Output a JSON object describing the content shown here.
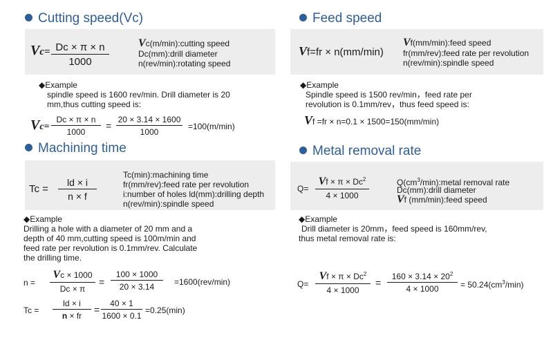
{
  "cutting": {
    "title": "Cutting speed(Vc)",
    "formula": {
      "lhs_v": "V",
      "lhs_sub": "c=",
      "num": "Dc × π × n",
      "den": "1000"
    },
    "legend": [
      {
        "v": "V",
        "text": "c(m/min):cutting speed"
      },
      {
        "text": "Dc(mm):drill diameter"
      },
      {
        "text": "n(rev/min):rotating speed"
      }
    ],
    "example_head": "◆Example",
    "example_lines": [
      "spindle speed is 1600 rev/min. Drill diameter is 20",
      "mm,thus cutting speed is:"
    ],
    "calc": {
      "v": "V",
      "sub": "c=",
      "num1": "Dc × π × n",
      "den1": "1000",
      "eq": "=",
      "num2": "20 × 3.14 × 1600",
      "den2": "1000",
      "result": "=100(m/min)"
    }
  },
  "feed": {
    "title": "Feed speed",
    "formula": {
      "v": "V",
      "text": "f=fr × n(mm/min)"
    },
    "legend": [
      {
        "v": "V",
        "text": "f(mm/min):feed speed"
      },
      {
        "text": "fr(mm/rev):feed rate per revolution"
      },
      {
        "text": "n(rev/min):spindle speed"
      }
    ],
    "example_head": "◆Example",
    "example_lines": [
      "Spindle speed is 1500 rev/min，feed rate per",
      "revolution is 0.1mm/rev，thus feed speed is:"
    ],
    "calc": {
      "v": "V",
      "text": "f =fr × n=0.1 × 1500=150(mm/min)"
    }
  },
  "machining": {
    "title": "Machining time",
    "formula": {
      "lhs": "Tc  =",
      "num": "ld × i",
      "den": "n × f"
    },
    "legend": [
      "Tc(min):machining time",
      "fr(mm/rev):feed rate per revolution",
      "i:number of holes ld(mm):drilling depth",
      "n(rev/min):spindle speed"
    ],
    "example_head": "◆Example",
    "example_lines": [
      "Drilling a hole with a diameter of 20 mm and a",
      "depth of 40 mm,cutting speed is 100m/min and",
      "feed rate per revolution is 0.1mm/rev. Calculate",
      "the drilling time."
    ],
    "calc_n": {
      "lhs": "n  =",
      "num1_v": "V",
      "num1_rest": "c × 1000",
      "den1": "Dc × π",
      "eq": "=",
      "num2": "100 × 1000",
      "den2": "20 × 3.14",
      "result": "=1600(rev/min)"
    },
    "calc_tc": {
      "lhs": "Tc  =",
      "num1": "ld × i",
      "den1_b": "n",
      "den1_rest": " × fr",
      "eq": "=",
      "num2": "40 × 1",
      "den2": "1600 × 0.1",
      "result": "=0.25(min)"
    }
  },
  "removal": {
    "title": "Metal removal rate",
    "formula": {
      "lhs": "Q=",
      "num_v": "V",
      "num_rest": "f × π × Dc",
      "num_sup": "2",
      "den": "4 × 1000"
    },
    "legend": [
      {
        "text": "Q(cm",
        "sup": "3",
        "text2": "/min):metal removal rate"
      },
      {
        "text": "Dc(mm):drill diameter"
      },
      {
        "v": "V",
        "text": "f (mm/min):feed speed"
      }
    ],
    "example_head": "◆Example",
    "example_lines": [
      "Drill diameter is 20mm，feed speed is 160mm/rev,",
      "thus metal removal rate is:"
    ],
    "calc": {
      "lhs": "Q=",
      "num1_v": "V",
      "num1_rest": "f × π × Dc",
      "num1_sup": "2",
      "den1": "4 × 1000",
      "eq": "=",
      "num2": "160 × 3.14 × 20",
      "num2_sup": "2",
      "den2": "4 × 1000",
      "result_pre": "= 50.24(cm",
      "result_sup": "3",
      "result_post": "/min)"
    }
  },
  "colors": {
    "title": "#2e5e9a",
    "band": "#ededed",
    "text": "#1a1a1a"
  }
}
